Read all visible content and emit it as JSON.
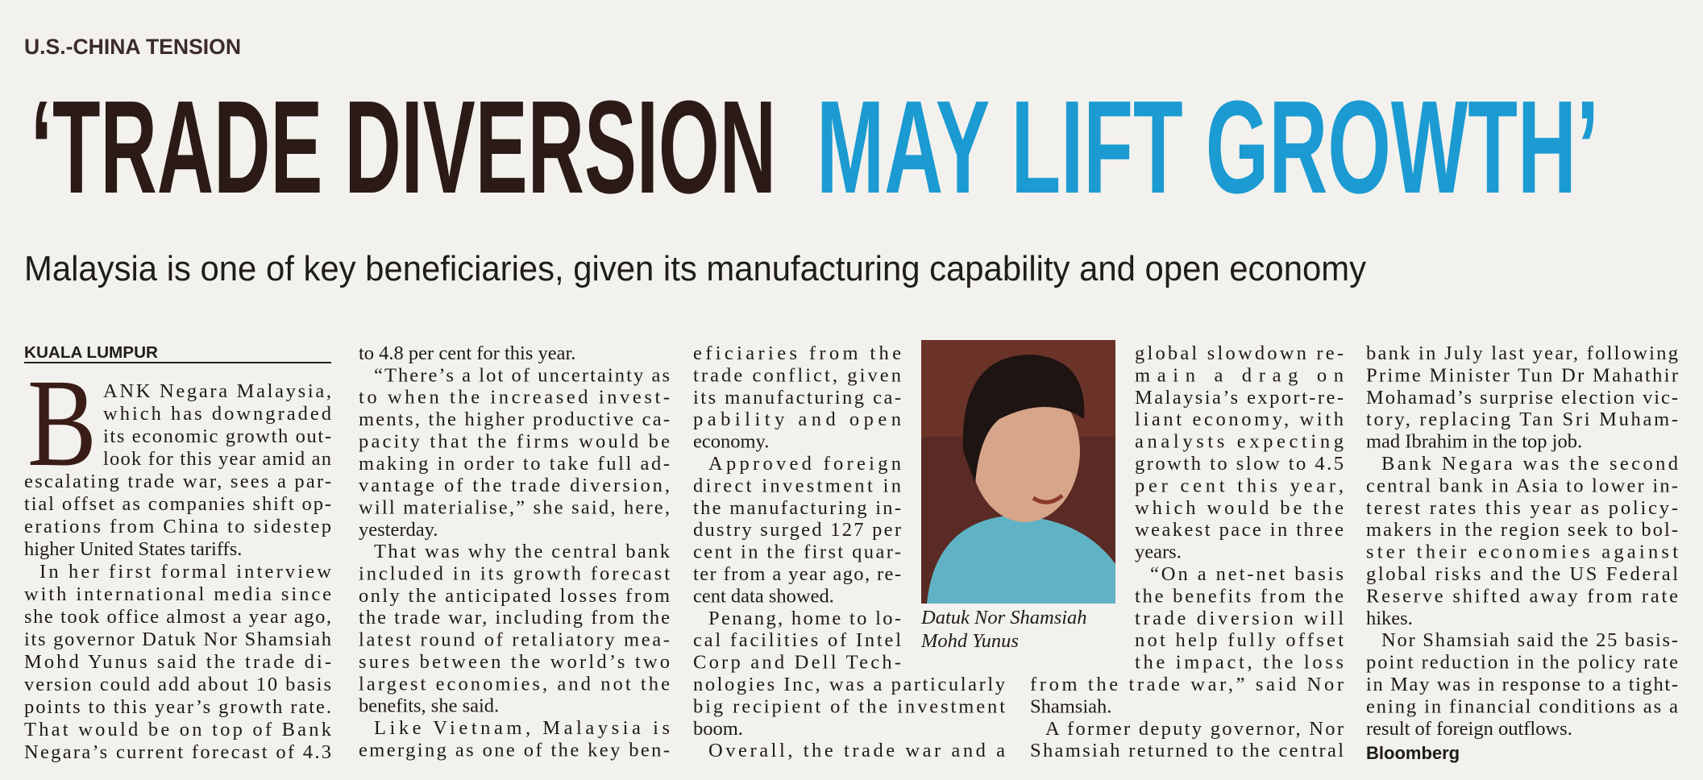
{
  "kicker": "U.S.-CHINA TENSION",
  "headline": {
    "dark": "‘TRADE DIVERSION",
    "accent": "MAY LIFT GROWTH’"
  },
  "subhead": "Malaysia is one of key beneficiaries, given its manufacturing capability and open economy",
  "byline": "KUALA LUMPUR",
  "drop_cap": "B",
  "columns": [
    [
      [
        "ANK Negara Malaysia,",
        "which has downgraded",
        "its economic growth out-",
        "look for this year amid an",
        "escalating trade war, sees a par-",
        "tial offset as companies shift op-",
        "erations from China to sidestep",
        "higher United States tariffs."
      ],
      [
        "In her first formal interview",
        "with international media since",
        "she took office almost a year ago,",
        "its governor Datuk Nor Shamsiah",
        "Mohd Yunus said the trade di-",
        "version could add about 10 basis",
        "points to this year’s growth rate.",
        "That would be on top of Bank",
        "Negara’s current forecast of 4.3"
      ]
    ],
    [
      [
        "to 4.8 per cent for this year."
      ],
      [
        "“There’s a lot of uncertainty as",
        "to when the increased invest-",
        "ments, the higher productive ca-",
        "pacity that the firms would be",
        "making in order to take full ad-",
        "vantage of the trade diversion,",
        "will materialise,” she said, here,",
        "yesterday."
      ],
      [
        "That was why the central bank",
        "included in its growth forecast",
        "only the anticipated losses from",
        "the trade war, including from the",
        "latest round of retaliatory mea-",
        "sures between the world’s two",
        "largest economies, and not the",
        "benefits, she said."
      ],
      [
        "Like Vietnam, Malaysia is",
        "emerging as one of the key ben-"
      ]
    ],
    [
      [
        "eficiaries from the",
        "trade conflict, given",
        "its manufacturing ca-",
        "pability and open",
        "economy."
      ],
      [
        "Approved foreign",
        "direct investment in",
        "the manufacturing in-",
        "dustry surged 127 per",
        "cent in the first quar-",
        "ter from a year ago, re-",
        "cent data showed."
      ],
      [
        "Penang, home to lo-",
        "cal facilities of Intel",
        "Corp and Dell Tech-",
        "nologies Inc, was a particularly",
        "big recipient of the investment",
        "boom."
      ],
      [
        "Overall, the trade war and a"
      ]
    ],
    [
      [
        "global slowdown re-",
        "main a drag on",
        "Malaysia’s export-re-",
        "liant economy, with",
        "analysts expecting",
        "growth to slow to 4.5",
        "per cent this year,",
        "which would be the",
        "weakest pace in three",
        "years."
      ],
      [
        "“On a net-net basis",
        "the benefits from the",
        "trade diversion will",
        "not help fully offset",
        "the impact, the loss",
        "from the trade war,” said Nor",
        "Shamsiah."
      ],
      [
        "A former deputy governor, Nor",
        "Shamsiah returned to the central"
      ]
    ],
    [
      [
        "bank in July last year, following",
        "Prime Minister Tun Dr Mahathir",
        "Mohamad’s surprise election vic-",
        "tory, replacing Tan Sri Muham-",
        "mad Ibrahim in the top job."
      ],
      [
        "Bank Negara was the second",
        "central bank in Asia to lower in-",
        "terest rates this year as policy-",
        "makers in the region seek to bol-",
        "ster their economies against",
        "global risks and the US Federal",
        "Reserve shifted away from rate",
        "hikes."
      ],
      [
        "Nor Shamsiah said the 25 basis-",
        "point reduction in the policy rate",
        "in May was in response to a tight-",
        "ening in financial conditions as a",
        "result of foreign outflows."
      ]
    ]
  ],
  "photo_caption": [
    "Datuk Nor Shamsiah",
    "Mohd Yunus"
  ],
  "credit": "Bloomberg"
}
